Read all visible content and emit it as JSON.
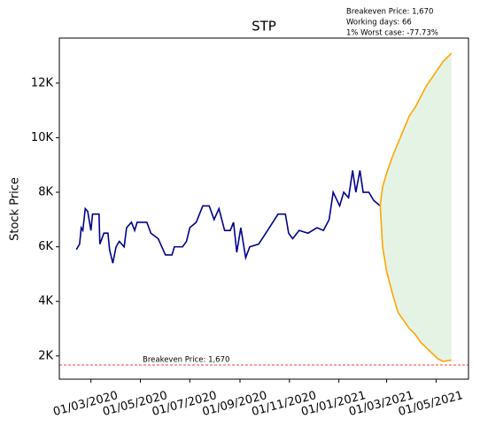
{
  "chart_data": {
    "type": "line",
    "title": "STP",
    "y_label": "Stock Price",
    "xlim": [
      "2020-01-22",
      "2021-06-10"
    ],
    "xticks": [
      {
        "value": "2020-03-01",
        "label": "01/03/2020"
      },
      {
        "value": "2020-05-01",
        "label": "01/05/2020"
      },
      {
        "value": "2020-07-01",
        "label": "01/07/2020"
      },
      {
        "value": "2020-09-01",
        "label": "01/09/2020"
      },
      {
        "value": "2020-11-01",
        "label": "01/11/2020"
      },
      {
        "value": "2021-01-01",
        "label": "01/01/2021"
      },
      {
        "value": "2021-03-01",
        "label": "01/03/2021"
      },
      {
        "value": "2021-05-01",
        "label": "01/05/2021"
      }
    ],
    "ylim": [
      1150,
      13650
    ],
    "yticks": [
      {
        "value": 2000,
        "label": "2K"
      },
      {
        "value": 4000,
        "label": "4K"
      },
      {
        "value": 6000,
        "label": "6K"
      },
      {
        "value": 8000,
        "label": "8K"
      },
      {
        "value": 10000,
        "label": "10K"
      },
      {
        "value": 12000,
        "label": "12K"
      }
    ],
    "series": [
      {
        "color": "#00008b",
        "x": [
          "2020-02-12",
          "2020-02-16",
          "2020-02-18",
          "2020-02-20",
          "2020-02-23",
          "2020-02-26",
          "2020-03-01",
          "2020-03-03",
          "2020-03-11",
          "2020-03-12",
          "2020-03-17",
          "2020-03-22",
          "2020-03-24",
          "2020-03-28",
          "2020-04-01",
          "2020-04-05",
          "2020-04-11",
          "2020-04-14",
          "2020-04-20",
          "2020-04-24",
          "2020-04-27",
          "2020-05-01",
          "2020-05-09",
          "2020-05-14",
          "2020-05-23",
          "2020-06-01",
          "2020-06-09",
          "2020-06-12",
          "2020-06-22",
          "2020-06-27",
          "2020-07-01",
          "2020-07-09",
          "2020-07-17",
          "2020-07-25",
          "2020-07-31",
          "2020-08-06",
          "2020-08-13",
          "2020-08-20",
          "2020-08-24",
          "2020-08-28",
          "2020-09-02",
          "2020-09-08",
          "2020-09-13",
          "2020-09-24",
          "2020-10-05",
          "2020-10-18",
          "2020-10-27",
          "2020-10-31",
          "2020-11-05",
          "2020-11-13",
          "2020-11-24",
          "2020-12-05",
          "2020-12-13",
          "2020-12-20",
          "2020-12-25",
          "2021-01-02",
          "2021-01-07",
          "2021-01-13",
          "2021-01-18",
          "2021-01-22",
          "2021-01-27",
          "2021-01-31",
          "2021-02-07",
          "2021-02-13",
          "2021-02-21"
        ],
        "values": [
          5900,
          6100,
          6700,
          6600,
          7400,
          7300,
          6600,
          7200,
          7200,
          6100,
          6500,
          6500,
          5900,
          5400,
          6000,
          6200,
          6000,
          6700,
          6900,
          6600,
          6900,
          6900,
          6900,
          6500,
          6300,
          5700,
          5700,
          6000,
          6000,
          6200,
          6700,
          6900,
          7500,
          7500,
          7000,
          7400,
          6600,
          6600,
          6900,
          5800,
          6700,
          5600,
          6000,
          6100,
          6600,
          7200,
          7200,
          6500,
          6300,
          6600,
          6500,
          6700,
          6600,
          7000,
          8000,
          7500,
          8000,
          7800,
          8800,
          8000,
          8800,
          8000,
          8000,
          7700,
          7500
        ]
      }
    ],
    "projection": {
      "line_color": "#ffa500",
      "fill_color": "#2ca02c",
      "x": [
        "2021-02-21",
        "2021-02-24",
        "2021-03-01",
        "2021-03-08",
        "2021-03-15",
        "2021-03-22",
        "2021-03-29",
        "2021-04-05",
        "2021-04-12",
        "2021-04-19",
        "2021-04-26",
        "2021-05-03",
        "2021-05-10",
        "2021-05-20"
      ],
      "upper": [
        7500,
        8200,
        8700,
        9300,
        9800,
        10300,
        10800,
        11100,
        11500,
        11900,
        12200,
        12500,
        12800,
        13100
      ],
      "lower": [
        7500,
        6000,
        5100,
        4300,
        3600,
        3300,
        3000,
        2800,
        2500,
        2300,
        2100,
        1900,
        1800,
        1850
      ]
    },
    "hline": {
      "value": 1670,
      "color": "#ff0000",
      "label": "Breakeven Price: 1,670"
    },
    "info": [
      "Breakeven Price: 1,670",
      "Working days: 66",
      "1% Worst case: -77.73%"
    ]
  }
}
